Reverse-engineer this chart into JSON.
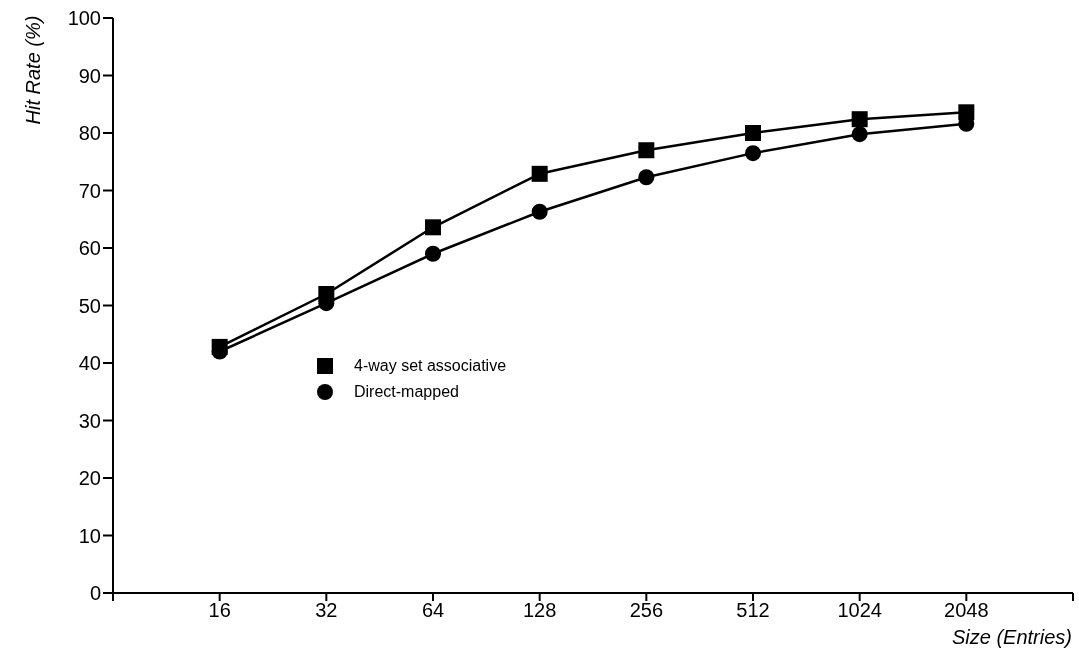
{
  "chart_data": {
    "type": "line",
    "xlabel": "Size (Entries)",
    "ylabel": "Hit Rate (%)",
    "x": [
      16,
      32,
      64,
      128,
      256,
      512,
      1024,
      2048
    ],
    "log": "x",
    "xlim": [
      8,
      4096
    ],
    "xticks": [
      {
        "value": 8,
        "label": null
      },
      16,
      32,
      64,
      128,
      256,
      512,
      1024,
      2048,
      {
        "value": 4096,
        "label": null
      }
    ],
    "ylim": [
      0,
      100
    ],
    "yticks": [
      0,
      10,
      20,
      30,
      40,
      50,
      60,
      70,
      80,
      90,
      100
    ],
    "grid": false,
    "legend": "center left",
    "line_style": "solid",
    "series": [
      {
        "name": "4-way set associative",
        "color": "#000000",
        "marker": "square",
        "values": [
          42.8,
          52.0,
          63.6,
          72.9,
          77.0,
          80.0,
          82.4,
          83.6
        ]
      },
      {
        "name": "Direct-mapped",
        "color": "#000000",
        "marker": "circle",
        "values": [
          42.0,
          50.4,
          59.0,
          66.3,
          72.3,
          76.5,
          79.8,
          81.6
        ]
      }
    ]
  }
}
